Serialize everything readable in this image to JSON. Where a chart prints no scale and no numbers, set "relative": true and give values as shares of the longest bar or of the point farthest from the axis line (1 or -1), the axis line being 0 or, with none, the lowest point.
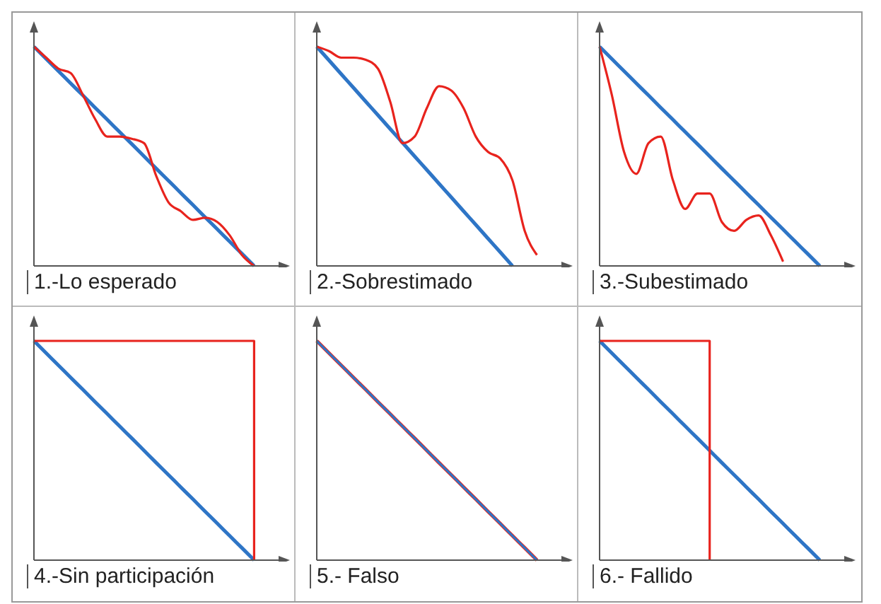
{
  "chart_data": [
    {
      "type": "line",
      "title": "1.-Lo esperado",
      "relative": true,
      "categories": [
        null,
        null,
        null,
        null,
        null,
        null,
        null,
        null,
        null,
        null,
        null,
        null,
        null,
        null,
        null,
        null,
        null,
        null,
        null,
        null,
        null
      ],
      "series": [
        {
          "color": "#2e75c6",
          "values": [
            1,
            0.944,
            0.889,
            0.833,
            0.778,
            0.722,
            0.667,
            0.611,
            0.556,
            0.5,
            0.444,
            0.389,
            0.333,
            0.278,
            0.222,
            0.167,
            0.111,
            0.056,
            0,
            null,
            null
          ]
        },
        {
          "color": "#e8231d",
          "values": [
            1,
            0.95,
            0.9,
            0.88,
            0.78,
            0.67,
            0.59,
            0.59,
            0.58,
            0.56,
            0.41,
            0.29,
            0.25,
            0.21,
            0.22,
            0.2,
            0.14,
            0.05,
            0,
            null,
            null
          ]
        }
      ]
    },
    {
      "type": "line",
      "title": "2.-Sobrestimado",
      "relative": true,
      "categories": [
        null,
        null,
        null,
        null,
        null,
        null,
        null,
        null,
        null,
        null,
        null,
        null,
        null,
        null,
        null,
        null,
        null,
        null,
        null,
        null,
        null
      ],
      "series": [
        {
          "color": "#2e75c6",
          "values": [
            1,
            0.938,
            0.875,
            0.813,
            0.75,
            0.688,
            0.625,
            0.563,
            0.5,
            0.438,
            0.375,
            0.313,
            0.25,
            0.188,
            0.125,
            0.063,
            0,
            null,
            null,
            null,
            null
          ]
        },
        {
          "color": "#e8231d",
          "values": [
            1,
            0.98,
            0.95,
            0.95,
            0.94,
            0.9,
            0.75,
            0.56,
            0.59,
            0.72,
            0.82,
            0.8,
            0.72,
            0.59,
            0.52,
            0.49,
            0.39,
            0.16,
            0.05,
            null,
            null
          ]
        }
      ]
    },
    {
      "type": "line",
      "title": "3.-Subestimado",
      "relative": true,
      "categories": [
        null,
        null,
        null,
        null,
        null,
        null,
        null,
        null,
        null,
        null,
        null,
        null,
        null,
        null,
        null,
        null,
        null,
        null,
        null,
        null,
        null
      ],
      "series": [
        {
          "color": "#2e75c6",
          "values": [
            1,
            0.944,
            0.889,
            0.833,
            0.778,
            0.722,
            0.667,
            0.611,
            0.556,
            0.5,
            0.444,
            0.389,
            0.333,
            0.278,
            0.222,
            0.167,
            0.111,
            0.056,
            0,
            null,
            null
          ]
        },
        {
          "color": "#e8231d",
          "values": [
            1,
            0.78,
            0.52,
            0.42,
            0.56,
            0.59,
            0.39,
            0.26,
            0.33,
            0.33,
            0.2,
            0.16,
            0.21,
            0.23,
            0.14,
            0.02,
            null,
            null,
            null,
            null,
            null
          ]
        }
      ]
    },
    {
      "type": "line",
      "title": "4.-Sin participación",
      "relative": true,
      "categories": [
        null,
        null,
        null,
        null,
        null,
        null,
        null,
        null,
        null,
        null,
        null,
        null,
        null,
        null,
        null,
        null,
        null,
        null,
        null,
        null,
        null
      ],
      "series": [
        {
          "color": "#2e75c6",
          "values": [
            1,
            0.944,
            0.889,
            0.833,
            0.778,
            0.722,
            0.667,
            0.611,
            0.556,
            0.5,
            0.444,
            0.389,
            0.333,
            0.278,
            0.222,
            0.167,
            0.111,
            0.056,
            0,
            null,
            null
          ]
        },
        {
          "type": "step",
          "color": "#e8231d",
          "values": [
            1,
            1,
            1,
            1,
            1,
            1,
            1,
            1,
            1,
            1,
            1,
            1,
            1,
            1,
            1,
            1,
            1,
            1,
            0,
            null,
            null
          ]
        }
      ]
    },
    {
      "type": "line",
      "title": "5.- Falso",
      "relative": true,
      "categories": [
        null,
        null,
        null,
        null,
        null,
        null,
        null,
        null,
        null,
        null,
        null,
        null,
        null,
        null,
        null,
        null,
        null,
        null,
        null,
        null,
        null
      ],
      "series": [
        {
          "color": "#e8231d",
          "values": [
            1,
            0.944,
            0.889,
            0.833,
            0.778,
            0.722,
            0.667,
            0.611,
            0.556,
            0.5,
            0.444,
            0.389,
            0.333,
            0.278,
            0.222,
            0.167,
            0.111,
            0.056,
            0,
            null,
            null
          ]
        },
        {
          "color": "#2e75c6",
          "values": [
            1,
            0.944,
            0.889,
            0.833,
            0.778,
            0.722,
            0.667,
            0.611,
            0.556,
            0.5,
            0.444,
            0.389,
            0.333,
            0.278,
            0.222,
            0.167,
            0.111,
            0.056,
            0,
            null,
            null
          ]
        }
      ]
    },
    {
      "type": "line",
      "title": "6.- Fallido",
      "relative": true,
      "categories": [
        null,
        null,
        null,
        null,
        null,
        null,
        null,
        null,
        null,
        null,
        null,
        null,
        null,
        null,
        null,
        null,
        null,
        null,
        null,
        null,
        null
      ],
      "series": [
        {
          "color": "#2e75c6",
          "values": [
            1,
            0.944,
            0.889,
            0.833,
            0.778,
            0.722,
            0.667,
            0.611,
            0.556,
            0.5,
            0.444,
            0.389,
            0.333,
            0.278,
            0.222,
            0.167,
            0.111,
            0.056,
            0,
            null,
            null
          ]
        },
        {
          "type": "step",
          "color": "#e8231d",
          "values": [
            1,
            1,
            1,
            1,
            1,
            1,
            1,
            1,
            1,
            0,
            null,
            null,
            null,
            null,
            null,
            null,
            null,
            null,
            null,
            null,
            null
          ]
        }
      ]
    }
  ]
}
